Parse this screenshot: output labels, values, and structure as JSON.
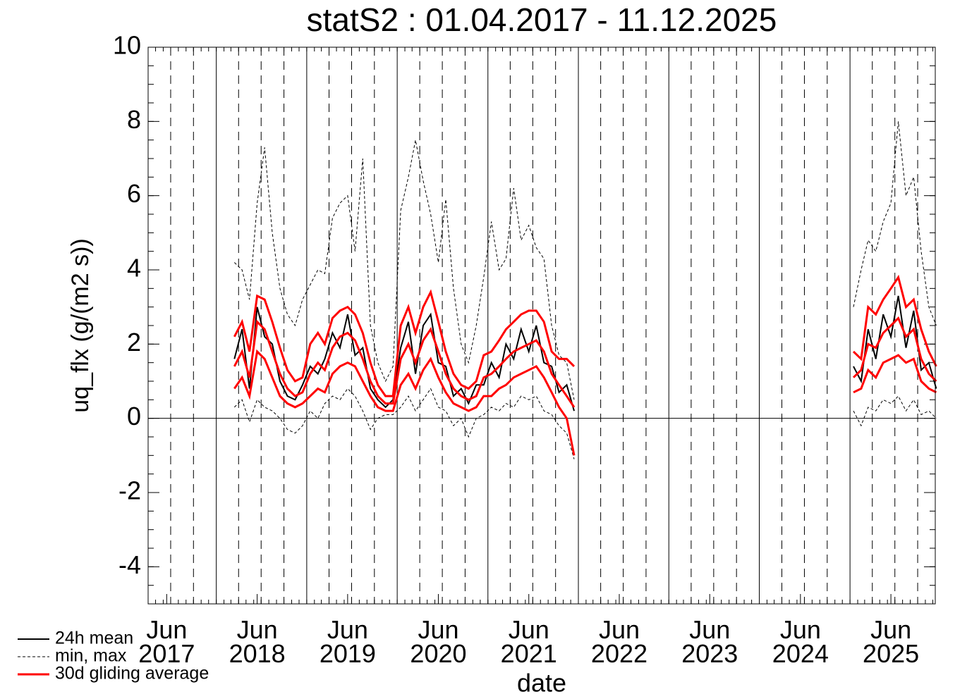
{
  "chart_data": {
    "type": "line",
    "title": "statS2 : 01.04.2017 - 11.12.2025",
    "x_label": "date",
    "y_label": "uq_flx (g/(m2 s))",
    "xlim": [
      "2017-04-01",
      "2025-12-11"
    ],
    "xticks": [
      {
        "value": "2017-06",
        "label": "Jun 2017"
      },
      {
        "value": "2018-06",
        "label": "Jun 2018"
      },
      {
        "value": "2019-06",
        "label": "Jun 2019"
      },
      {
        "value": "2020-06",
        "label": "Jun 2020"
      },
      {
        "value": "2021-06",
        "label": "Jun 2021"
      },
      {
        "value": "2022-06",
        "label": "Jun 2022"
      },
      {
        "value": "2023-06",
        "label": "Jun 2023"
      },
      {
        "value": "2024-06",
        "label": "Jun 2024"
      },
      {
        "value": "2025-06",
        "label": "Jun 2025"
      }
    ],
    "ylim": [
      -5,
      10
    ],
    "yticks": [
      -4,
      -2,
      0,
      2,
      4,
      6,
      8,
      10
    ],
    "x": [
      "2018-03",
      "2018-04",
      "2018-05",
      "2018-06",
      "2018-07",
      "2018-08",
      "2018-09",
      "2018-10",
      "2018-11",
      "2018-12",
      "2019-01",
      "2019-02",
      "2019-03",
      "2019-04",
      "2019-05",
      "2019-06",
      "2019-07",
      "2019-08",
      "2019-09",
      "2019-10",
      "2019-11",
      "2019-12",
      "2020-01",
      "2020-02",
      "2020-03",
      "2020-04",
      "2020-05",
      "2020-06",
      "2020-07",
      "2020-08",
      "2020-09",
      "2020-10",
      "2020-11",
      "2020-12",
      "2021-01",
      "2021-02",
      "2021-03",
      "2021-04",
      "2021-05",
      "2021-06",
      "2021-07",
      "2021-08",
      "2021-09",
      "2021-10",
      "2021-11",
      "2021-12",
      "2023-06",
      "2025-01",
      "2025-02",
      "2025-03",
      "2025-04",
      "2025-05",
      "2025-06",
      "2025-07",
      "2025-08",
      "2025-09",
      "2025-10",
      "2025-11",
      "2025-12"
    ],
    "series": [
      {
        "name": "24h mean",
        "color": "#000000",
        "style": "solid",
        "values": [
          1.6,
          2.4,
          0.8,
          3.0,
          2.2,
          2.0,
          1.0,
          0.6,
          0.5,
          0.9,
          1.4,
          1.2,
          1.6,
          2.3,
          1.9,
          2.8,
          1.7,
          1.9,
          0.8,
          0.5,
          0.3,
          0.5,
          1.9,
          2.6,
          1.2,
          2.5,
          2.8,
          1.5,
          1.4,
          0.6,
          0.8,
          0.4,
          0.9,
          0.9,
          1.5,
          1.1,
          2.0,
          1.6,
          2.4,
          1.8,
          2.5,
          1.5,
          1.4,
          0.7,
          0.9,
          0.2,
          null,
          1.4,
          1.0,
          2.4,
          1.6,
          2.8,
          2.2,
          3.3,
          1.9,
          2.9,
          1.3,
          1.5,
          0.8
        ]
      },
      {
        "name": "min, max",
        "color": "#000000",
        "style": "dashed",
        "min": [
          0.3,
          0.5,
          -0.1,
          0.5,
          0.3,
          0.2,
          0.0,
          -0.3,
          -0.4,
          -0.2,
          0.2,
          0.0,
          0.4,
          0.6,
          0.5,
          0.8,
          0.6,
          0.2,
          -0.3,
          0.0,
          0.1,
          0.1,
          0.3,
          0.6,
          0.2,
          0.5,
          0.8,
          0.3,
          0.2,
          -0.2,
          0.0,
          -0.5,
          0.0,
          0.1,
          0.3,
          0.2,
          0.4,
          0.3,
          0.6,
          0.5,
          0.6,
          0.2,
          0.1,
          -0.2,
          -0.4,
          -1.1,
          null,
          0.2,
          -0.2,
          0.3,
          0.2,
          0.5,
          0.4,
          0.6,
          0.2,
          0.5,
          0.1,
          0.2,
          0.0
        ],
        "max": [
          4.2,
          4.0,
          3.2,
          5.8,
          7.3,
          5.0,
          3.5,
          2.8,
          2.5,
          3.2,
          3.6,
          4.0,
          3.9,
          5.4,
          5.8,
          6.0,
          4.5,
          7.0,
          2.5,
          1.5,
          1.0,
          1.4,
          5.6,
          6.5,
          7.5,
          6.4,
          5.5,
          4.2,
          5.9,
          3.5,
          2.0,
          1.5,
          2.5,
          3.8,
          5.3,
          4.0,
          4.3,
          6.2,
          4.8,
          5.2,
          4.6,
          4.3,
          2.5,
          1.7,
          1.5,
          0.5,
          null,
          3.0,
          4.0,
          4.8,
          4.5,
          5.3,
          5.8,
          8.0,
          6.0,
          6.5,
          4.5,
          3.0,
          2.5
        ]
      },
      {
        "name": "30d gliding average",
        "color": "#ff0000",
        "style": "thick",
        "values": [
          1.4,
          1.8,
          1.1,
          2.6,
          2.4,
          1.8,
          1.2,
          0.8,
          0.6,
          0.7,
          1.2,
          1.5,
          1.3,
          1.9,
          2.2,
          2.3,
          2.1,
          1.6,
          1.0,
          0.6,
          0.4,
          0.4,
          1.6,
          2.0,
          1.5,
          2.1,
          2.4,
          1.8,
          1.2,
          0.8,
          0.6,
          0.5,
          0.6,
          1.1,
          1.2,
          1.4,
          1.6,
          1.8,
          1.9,
          2.0,
          2.1,
          1.8,
          1.2,
          0.9,
          0.6,
          0.3,
          null,
          1.1,
          1.3,
          2.0,
          1.9,
          2.3,
          2.5,
          2.7,
          2.2,
          2.4,
          1.6,
          1.2,
          1.0
        ],
        "upper": [
          2.2,
          2.6,
          1.8,
          3.3,
          3.2,
          2.6,
          1.9,
          1.3,
          1.0,
          1.1,
          2.0,
          2.3,
          2.0,
          2.7,
          2.9,
          3.0,
          2.8,
          2.3,
          1.5,
          0.9,
          0.6,
          0.6,
          2.5,
          3.0,
          2.3,
          3.0,
          3.4,
          2.6,
          1.8,
          1.2,
          0.9,
          0.8,
          1.0,
          1.7,
          1.8,
          2.1,
          2.4,
          2.6,
          2.8,
          2.9,
          2.9,
          2.6,
          1.8,
          1.6,
          1.6,
          1.4,
          null,
          1.8,
          1.6,
          3.0,
          2.8,
          3.2,
          3.5,
          3.8,
          3.0,
          3.2,
          2.4,
          1.8,
          1.4
        ],
        "lower": [
          0.8,
          1.1,
          0.6,
          1.8,
          1.6,
          1.1,
          0.6,
          0.4,
          0.3,
          0.4,
          0.6,
          0.8,
          0.7,
          1.2,
          1.4,
          1.5,
          1.4,
          1.0,
          0.6,
          0.3,
          0.2,
          0.2,
          0.9,
          1.2,
          0.8,
          1.3,
          1.6,
          1.1,
          0.7,
          0.4,
          0.3,
          0.2,
          0.3,
          0.6,
          0.6,
          0.8,
          0.9,
          1.1,
          1.2,
          1.3,
          1.4,
          1.1,
          0.7,
          0.3,
          0.0,
          -1.0,
          null,
          0.7,
          0.8,
          1.3,
          1.1,
          1.5,
          1.6,
          1.7,
          1.5,
          1.6,
          1.0,
          0.8,
          0.7
        ]
      }
    ]
  }
}
